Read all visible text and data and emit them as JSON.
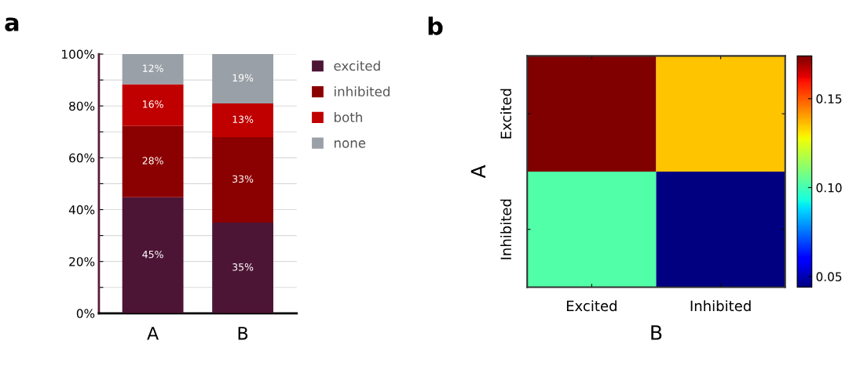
{
  "chart_data": [
    {
      "type": "bar",
      "annotations": [
        "a"
      ],
      "categories": [
        "A",
        "B"
      ],
      "stacked": true,
      "series": [
        {
          "name": "excited",
          "color": "#4d1535",
          "values": [
            44.8,
            35
          ],
          "value_labels": [
            "45%",
            "35%"
          ]
        },
        {
          "name": "inhibited",
          "color": "#8b0000",
          "values": [
            27.5,
            33
          ],
          "value_labels": [
            "28%",
            "33%"
          ]
        },
        {
          "name": "both",
          "color": "#c00000",
          "values": [
            16.1,
            13
          ],
          "value_labels": [
            "16%",
            "13%"
          ]
        },
        {
          "name": "none",
          "color": "#9aa0a7",
          "values": [
            11.6,
            19
          ],
          "value_labels": [
            "12%",
            "19%"
          ]
        }
      ],
      "ylim": [
        0,
        100
      ],
      "yticks": [
        {
          "value": 0,
          "label": "0%"
        },
        {
          "value": 10,
          "label": null
        },
        {
          "value": 20,
          "label": "20%"
        },
        {
          "value": 30,
          "label": null
        },
        {
          "value": 40,
          "label": "40%"
        },
        {
          "value": 50,
          "label": null
        },
        {
          "value": 60,
          "label": "60%"
        },
        {
          "value": 70,
          "label": null
        },
        {
          "value": 80,
          "label": "80%"
        },
        {
          "value": 90,
          "label": null
        },
        {
          "value": 100,
          "label": "100%"
        }
      ],
      "grid": "y",
      "legend": "right"
    },
    {
      "type": "heatmap",
      "annotations": [
        "b"
      ],
      "xlabel": "B",
      "ylabel": "A",
      "categories": [
        "Excited",
        "Inhibited"
      ],
      "y_categories": [
        "Excited",
        "Inhibited"
      ],
      "cells": [
        [
          0.174,
          0.135
        ],
        [
          0.102,
          0.044
        ]
      ],
      "clim": [
        0.044,
        0.174
      ],
      "cticks": [
        0.05,
        {
          "value": 0.1,
          "label": "0.10"
        },
        0.15
      ]
    }
  ]
}
